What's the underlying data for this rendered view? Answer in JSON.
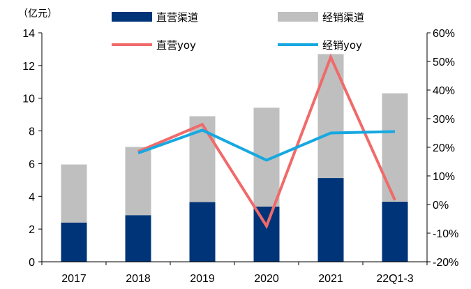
{
  "chart_data": {
    "type": "bar",
    "stacked": true,
    "unit_label": "（亿元）",
    "categories": [
      "2017",
      "2018",
      "2019",
      "2020",
      "2021",
      "22Q1-3"
    ],
    "series": [
      {
        "name": "直营渠道",
        "kind": "bar",
        "axis": "left",
        "color": "#003478",
        "values": [
          2.4,
          2.85,
          3.65,
          3.38,
          5.12,
          3.67
        ]
      },
      {
        "name": "经销渠道",
        "kind": "bar",
        "axis": "left",
        "color": "#bfbfbf",
        "values": [
          3.55,
          4.17,
          5.25,
          6.04,
          7.58,
          6.63
        ]
      },
      {
        "name": "直营yoy",
        "kind": "line",
        "axis": "right",
        "color": "#f06a6a",
        "values": [
          null,
          0.185,
          0.28,
          -0.075,
          0.515,
          0.015
        ]
      },
      {
        "name": "经销yoy",
        "kind": "line",
        "axis": "right",
        "color": "#17a8e0",
        "values": [
          null,
          0.18,
          0.26,
          0.155,
          0.25,
          0.255
        ]
      }
    ],
    "y_left": {
      "min": 0,
      "max": 14,
      "ticks": [
        "0",
        "2",
        "4",
        "6",
        "8",
        "10",
        "12",
        "14"
      ]
    },
    "y_right": {
      "min": -0.2,
      "max": 0.6,
      "ticks": [
        "-20%",
        "-10%",
        "0%",
        "10%",
        "20%",
        "30%",
        "40%",
        "50%",
        "60%"
      ]
    },
    "legend_position": "top",
    "grid": false
  }
}
